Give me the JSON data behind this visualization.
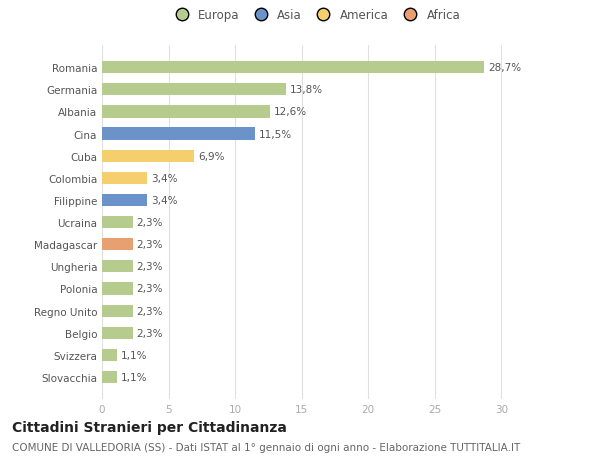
{
  "countries": [
    "Romania",
    "Germania",
    "Albania",
    "Cina",
    "Cuba",
    "Colombia",
    "Filippine",
    "Ucraina",
    "Madagascar",
    "Ungheria",
    "Polonia",
    "Regno Unito",
    "Belgio",
    "Svizzera",
    "Slovacchia"
  ],
  "values": [
    28.7,
    13.8,
    12.6,
    11.5,
    6.9,
    3.4,
    3.4,
    2.3,
    2.3,
    2.3,
    2.3,
    2.3,
    2.3,
    1.1,
    1.1
  ],
  "labels": [
    "28,7%",
    "13,8%",
    "12,6%",
    "11,5%",
    "6,9%",
    "3,4%",
    "3,4%",
    "2,3%",
    "2,3%",
    "2,3%",
    "2,3%",
    "2,3%",
    "2,3%",
    "1,1%",
    "1,1%"
  ],
  "categories": [
    "Europa",
    "Asia",
    "America",
    "Africa"
  ],
  "bar_colors": [
    "#b5cc8e",
    "#b5cc8e",
    "#b5cc8e",
    "#6b93c9",
    "#f5ce6e",
    "#f5ce6e",
    "#6b93c9",
    "#b5cc8e",
    "#e8a070",
    "#b5cc8e",
    "#b5cc8e",
    "#b5cc8e",
    "#b5cc8e",
    "#b5cc8e",
    "#b5cc8e"
  ],
  "legend_colors": [
    "#b5cc8e",
    "#6b93c9",
    "#f5ce6e",
    "#e8a070"
  ],
  "title": "Cittadini Stranieri per Cittadinanza",
  "subtitle": "COMUNE DI VALLEDORIA (SS) - Dati ISTAT al 1° gennaio di ogni anno - Elaborazione TUTTITALIA.IT",
  "xlim": [
    0,
    32
  ],
  "xticks": [
    0,
    5,
    10,
    15,
    20,
    25,
    30
  ],
  "background_color": "#ffffff",
  "grid_color": "#e0e0e0",
  "bar_height": 0.55,
  "title_fontsize": 10,
  "subtitle_fontsize": 7.5,
  "label_fontsize": 7.5,
  "tick_fontsize": 7.5,
  "legend_fontsize": 8.5
}
